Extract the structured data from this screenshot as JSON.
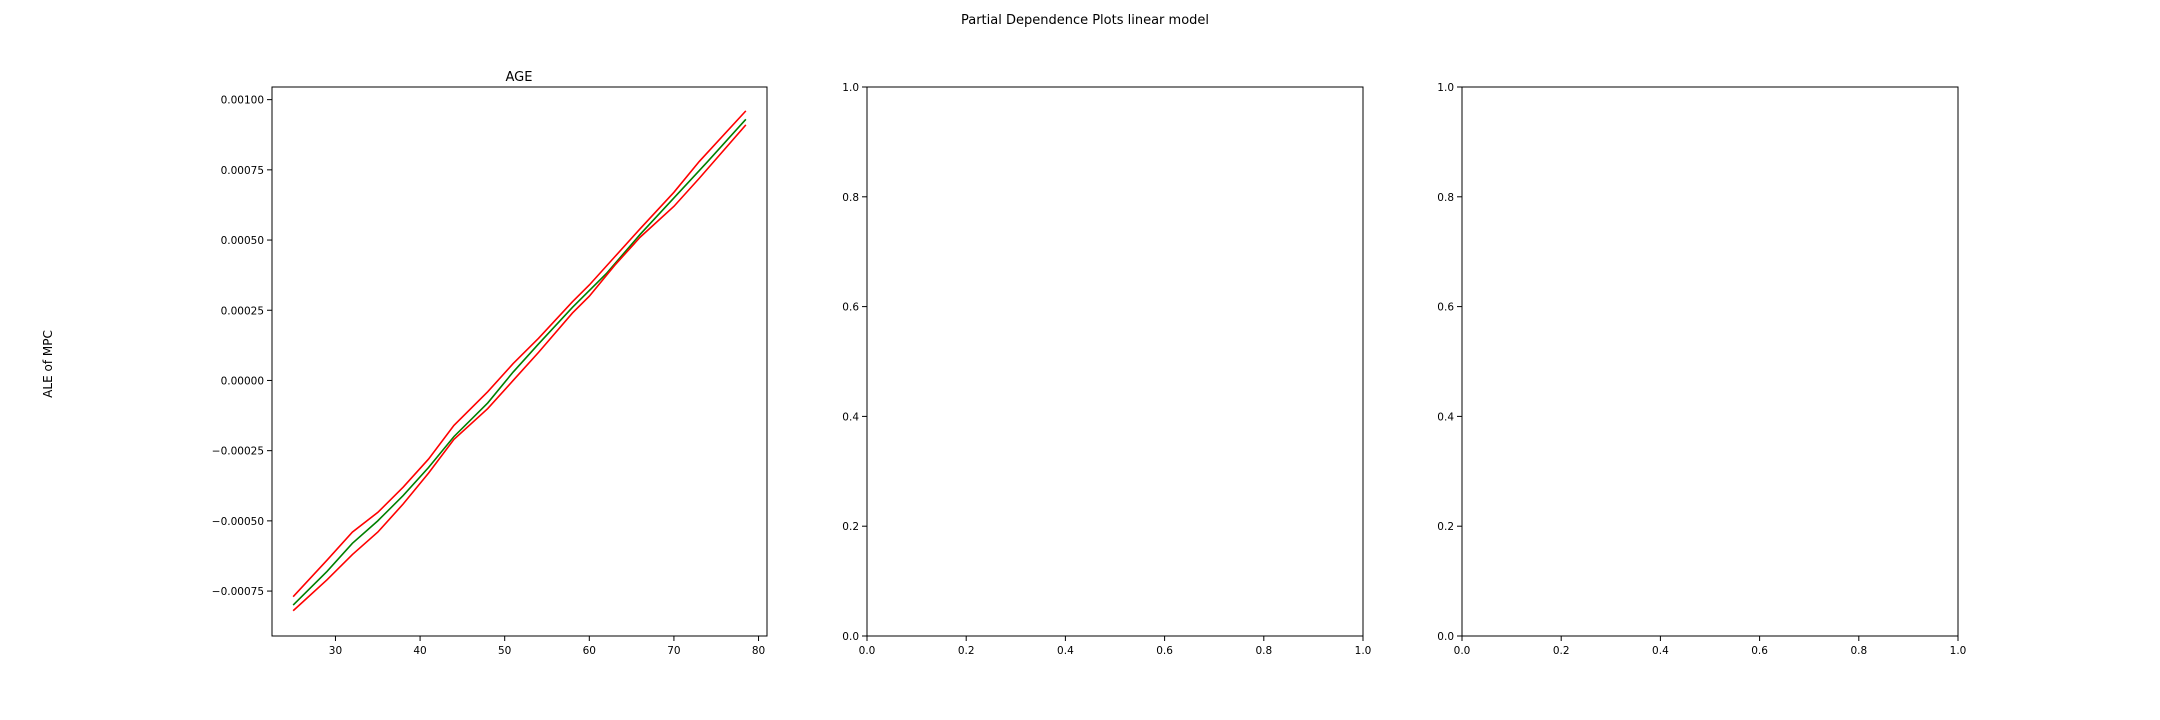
{
  "figure": {
    "suptitle": "Partial Dependence Plots linear model",
    "ylabel": "ALE of MPC"
  },
  "chart_data": [
    {
      "type": "line",
      "title": "AGE",
      "xlabel": "",
      "ylabel": "ALE of MPC",
      "xlim": [
        22.5,
        81
      ],
      "ylim": [
        -0.00091,
        0.001045
      ],
      "xticks": [
        30,
        40,
        50,
        60,
        70,
        80
      ],
      "xtick_labels": [
        "30",
        "40",
        "50",
        "60",
        "70",
        "80"
      ],
      "yticks": [
        -0.00075,
        -0.0005,
        -0.00025,
        0.0,
        0.00025,
        0.0005,
        0.00075,
        0.001
      ],
      "ytick_labels": [
        "−0.00075",
        "−0.00050",
        "−0.00025",
        "0.00000",
        "0.00025",
        "0.00050",
        "0.00075",
        "0.00100"
      ],
      "grid": false,
      "series": [
        {
          "color": "#008000",
          "x": [
            25,
            29,
            32,
            35,
            38,
            41,
            44,
            48,
            51,
            54,
            58,
            62,
            66,
            70,
            74,
            78.5
          ],
          "values": [
            -0.0008,
            -0.00068,
            -0.00058,
            -0.0005,
            -0.00041,
            -0.00031,
            -0.0002,
            -8e-05,
            3e-05,
            0.00013,
            0.00026,
            0.00038,
            0.00052,
            0.00065,
            0.00078,
            0.00093
          ]
        },
        {
          "color": "#ff0000",
          "x": [
            25,
            29,
            32,
            35,
            38,
            41,
            44,
            48,
            51,
            54,
            58,
            60,
            63,
            66,
            70,
            73,
            78.5
          ],
          "values": [
            -0.00077,
            -0.00064,
            -0.00054,
            -0.00047,
            -0.00038,
            -0.00028,
            -0.00016,
            -4e-05,
            6e-05,
            0.00015,
            0.00028,
            0.00034,
            0.00044,
            0.00054,
            0.00067,
            0.00078,
            0.00096
          ]
        },
        {
          "color": "#ff0000",
          "x": [
            25,
            29,
            32,
            35,
            38,
            41,
            44,
            48,
            51,
            54,
            58,
            60,
            63,
            66,
            70,
            73,
            78.5
          ],
          "values": [
            -0.00082,
            -0.00071,
            -0.00062,
            -0.00054,
            -0.00044,
            -0.00033,
            -0.00021,
            -0.0001,
            0.0,
            0.0001,
            0.00024,
            0.0003,
            0.00041,
            0.00051,
            0.00062,
            0.00072,
            0.00091
          ]
        }
      ]
    },
    {
      "type": "line",
      "title": "",
      "xlim": [
        0,
        1
      ],
      "ylim": [
        0,
        1
      ],
      "xticks": [
        0,
        0.2,
        0.4,
        0.6,
        0.8,
        1.0
      ],
      "xtick_labels": [
        "0.0",
        "0.2",
        "0.4",
        "0.6",
        "0.8",
        "1.0"
      ],
      "yticks": [
        0,
        0.2,
        0.4,
        0.6,
        0.8,
        1.0
      ],
      "ytick_labels": [
        "0.0",
        "0.2",
        "0.4",
        "0.6",
        "0.8",
        "1.0"
      ],
      "grid": false,
      "series": []
    },
    {
      "type": "line",
      "title": "",
      "xlim": [
        0,
        1
      ],
      "ylim": [
        0,
        1
      ],
      "xticks": [
        0,
        0.2,
        0.4,
        0.6,
        0.8,
        1.0
      ],
      "xtick_labels": [
        "0.0",
        "0.2",
        "0.4",
        "0.6",
        "0.8",
        "1.0"
      ],
      "yticks": [
        0,
        0.2,
        0.4,
        0.6,
        0.8,
        1.0
      ],
      "ytick_labels": [
        "0.0",
        "0.2",
        "0.4",
        "0.6",
        "0.8",
        "1.0"
      ],
      "grid": false,
      "series": []
    }
  ]
}
